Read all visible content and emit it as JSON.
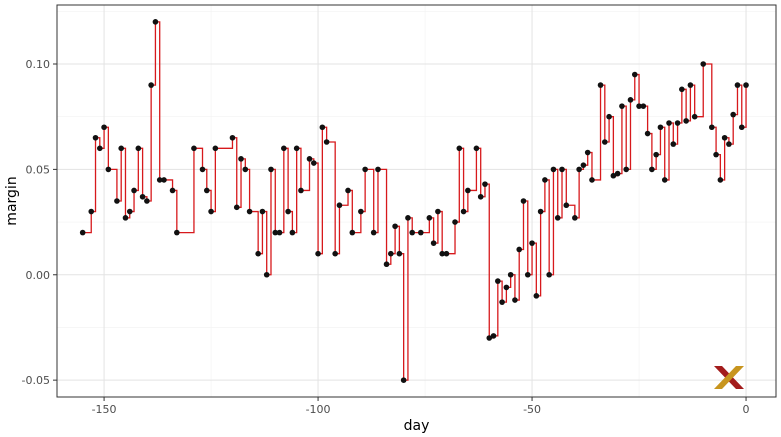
{
  "chart_data": {
    "type": "line",
    "subtype": "step",
    "title": "",
    "xlabel": "day",
    "ylabel": "margin",
    "xlim": [
      -161,
      7
    ],
    "ylim": [
      -0.058,
      0.128
    ],
    "x_ticks": [
      -150,
      -100,
      -50,
      0
    ],
    "y_ticks": [
      -0.05,
      0.0,
      0.05,
      0.1
    ],
    "x_tick_labels": [
      "-150",
      "-100",
      "-50",
      "0"
    ],
    "y_tick_labels": [
      "-0.05",
      "0.00",
      "0.05",
      "0.10"
    ],
    "grid": true,
    "legend": "none",
    "series": [
      {
        "x": [
          -155,
          -153,
          -152,
          -151,
          -150,
          -149,
          -147,
          -146,
          -145,
          -144,
          -143,
          -142,
          -141,
          -140,
          -139,
          -138,
          -137,
          -136,
          -134,
          -133,
          -129,
          -127,
          -126,
          -125,
          -124,
          -120,
          -119,
          -118,
          -117,
          -116,
          -114,
          -113,
          -112,
          -111,
          -110,
          -109,
          -108,
          -107,
          -106,
          -105,
          -104,
          -102,
          -101,
          -100,
          -99,
          -98,
          -96,
          -95,
          -93,
          -92,
          -90,
          -89,
          -87,
          -86,
          -84,
          -83,
          -82,
          -81,
          -80,
          -79,
          -78,
          -76,
          -74,
          -73,
          -72,
          -71,
          -70,
          -68,
          -67,
          -66,
          -65,
          -63,
          -62,
          -61,
          -60,
          -59,
          -58,
          -57,
          -56,
          -55,
          -54,
          -53,
          -52,
          -51,
          -50,
          -49,
          -48,
          -47,
          -46,
          -45,
          -44,
          -43,
          -42,
          -40,
          -39,
          -38,
          -37,
          -36,
          -34,
          -33,
          -32,
          -31,
          -30,
          -29,
          -28,
          -27,
          -26,
          -25,
          -24,
          -23,
          -22,
          -21,
          -20,
          -19,
          -18,
          -17,
          -16,
          -15,
          -14,
          -13,
          -12,
          -10,
          -8,
          -7,
          -6,
          -5,
          -4,
          -3,
          -2,
          -1,
          0
        ],
        "y": [
          0.02,
          0.03,
          0.065,
          0.06,
          0.07,
          0.05,
          0.035,
          0.06,
          0.027,
          0.03,
          0.04,
          0.06,
          0.037,
          0.035,
          0.09,
          0.12,
          0.045,
          0.045,
          0.04,
          0.02,
          0.06,
          0.05,
          0.04,
          0.03,
          0.06,
          0.065,
          0.032,
          0.055,
          0.05,
          0.03,
          0.01,
          0.03,
          0.0,
          0.05,
          0.02,
          0.02,
          0.06,
          0.03,
          0.02,
          0.06,
          0.04,
          0.055,
          0.053,
          0.01,
          0.07,
          0.063,
          0.01,
          0.033,
          0.04,
          0.02,
          0.03,
          0.05,
          0.02,
          0.05,
          0.005,
          0.01,
          0.023,
          0.01,
          -0.05,
          0.027,
          0.02,
          0.02,
          0.027,
          0.015,
          0.03,
          0.01,
          0.01,
          0.025,
          0.06,
          0.03,
          0.04,
          0.06,
          0.037,
          0.043,
          -0.03,
          -0.029,
          -0.003,
          -0.013,
          -0.006,
          0.0,
          -0.012,
          0.012,
          0.035,
          0.0,
          0.015,
          -0.01,
          0.03,
          0.045,
          0.0,
          0.05,
          0.027,
          0.05,
          0.033,
          0.027,
          0.05,
          0.052,
          0.058,
          0.045,
          0.09,
          0.063,
          0.075,
          0.047,
          0.048,
          0.08,
          0.05,
          0.083,
          0.095,
          0.08,
          0.08,
          0.067,
          0.05,
          0.057,
          0.07,
          0.045,
          0.072,
          0.062,
          0.072,
          0.088,
          0.073,
          0.09,
          0.075,
          0.1,
          0.07,
          0.057,
          0.045,
          0.065,
          0.062,
          0.076,
          0.09,
          0.07,
          0.09
        ]
      }
    ],
    "colors": {
      "line": "#d7191c",
      "point": "#111111",
      "grid_major": "#e3e3e3",
      "grid_minor": "#f2f2f2",
      "panel_border": "#333333",
      "logo_dark": "#a31c1c",
      "logo_gold": "#c8951e"
    }
  }
}
